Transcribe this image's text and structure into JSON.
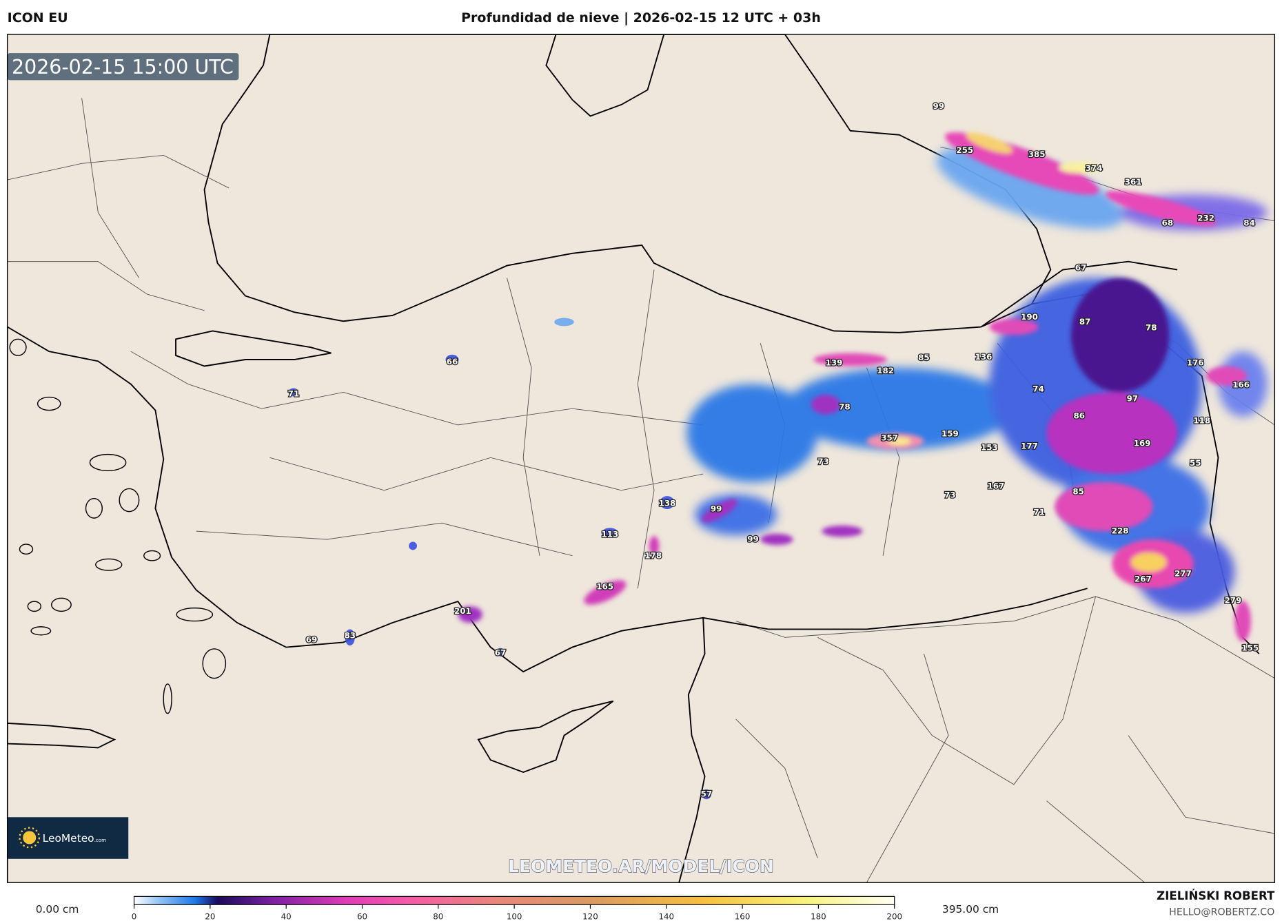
{
  "header": {
    "model": "ICON EU",
    "title": "Profundidad de nieve | 2026-02-15 12 UTC + 03h"
  },
  "map": {
    "valid_time": "2026-02-15 15:00 UTC",
    "watermark": "LEOMETEO.AR/MODEL/ICON",
    "logo": {
      "brand": "LeoMeteo",
      "suffix": ".com"
    },
    "colors": {
      "sea": "#d7e7f7",
      "land": "#efe7dc"
    },
    "snow_labels": [
      "99",
      "255",
      "385",
      "374",
      "361",
      "68",
      "232",
      "84",
      "67",
      "190",
      "87",
      "78",
      "139",
      "85",
      "136",
      "182",
      "176",
      "166",
      "74",
      "78",
      "97",
      "86",
      "118",
      "357",
      "159",
      "153",
      "177",
      "169",
      "73",
      "55",
      "167",
      "73",
      "85",
      "138",
      "99",
      "71",
      "113",
      "99",
      "228",
      "178",
      "165",
      "267",
      "277",
      "201",
      "279",
      "83",
      "69",
      "67",
      "155",
      "66",
      "71",
      "57"
    ]
  },
  "legend": {
    "min_label": "0.00 cm",
    "max_label": "395.00 cm",
    "ticks": [
      "0",
      "20",
      "40",
      "60",
      "80",
      "100",
      "120",
      "140",
      "160",
      "180",
      "200"
    ],
    "colors": [
      "#ffffff",
      "#9cc8f5",
      "#1e78e8",
      "#1a0a5a",
      "#7a1fa2",
      "#e03cb8",
      "#f55aa8",
      "#e8887a",
      "#d99a62",
      "#f7c040",
      "#f8f27a",
      "#fffff4"
    ]
  },
  "author": {
    "name": "ZIELIŃSKI ROBERT",
    "email": "HELLO@ROBERTZ.CO"
  }
}
